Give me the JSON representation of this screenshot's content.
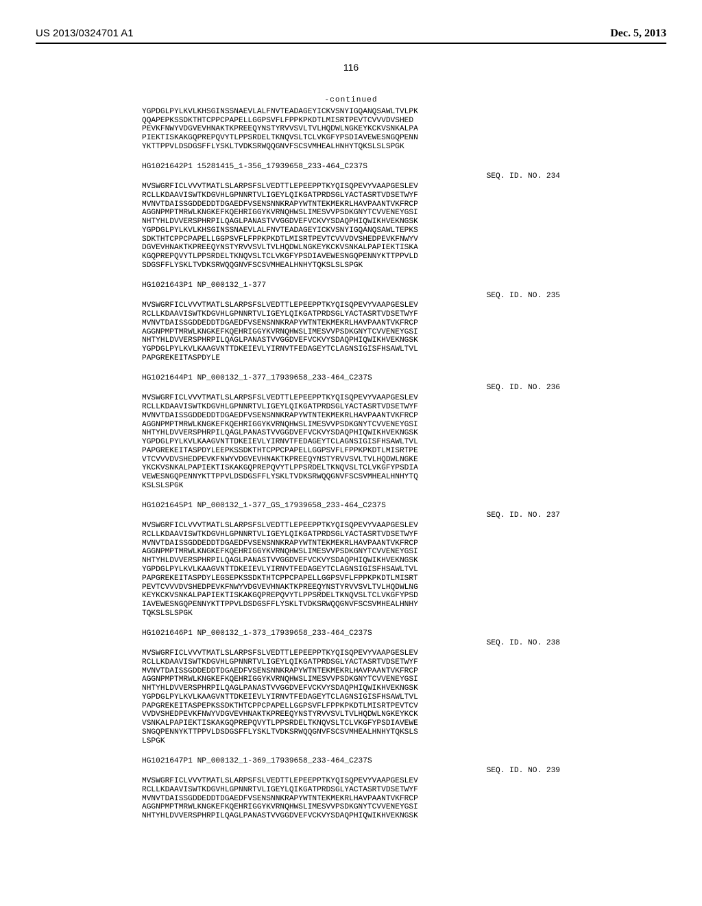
{
  "header": {
    "pub_number": "US 2013/0324701 A1",
    "pub_date": "Dec. 5, 2013"
  },
  "page_number": "116",
  "continued_label": "-continued",
  "blocks": [
    {
      "label": "",
      "seq_id": "",
      "lines": [
        "YGPDGLPYLKVLKHSGINSSNAEVLALFNVTEADAGEYICKVSNYIGQANQSAWLTVLPK",
        "QQAPEPKSSDKTHTCPPCPAPELLGGPSVFLFPPKPKDTLMISRTPEVTCVVVDVSHED",
        "PEVKFNWYVDGVEVHNAKTKPREEQYNSTYRVVSVLTVLHQDWLNGKEYKCKVSNKALPA",
        "PIEKTISKAKGQPREPQVYTLPPSRDELTKNQVSLTCLVKGFYPSDIAVEWESNGQPENN",
        "YKTTPPVLDSDGSFFLYSKLTVDKSRWQQGNVFSCSVMHEALHNHYTQKSLSLSPGK"
      ]
    },
    {
      "label": "HG1021642P1 15281415_1-356_17939658_233-464_C237S",
      "seq_id": "SEQ. ID. NO. 234",
      "lines": [
        "MVSWGRFICLVVVTMATLSLARPSFSLVEDTTLEPEEPPTKYQISQPEVYVAAPGESLEV",
        "RCLLKDAAVISWTKDGVHLGPNNRTVLIGEYLQIKGATPRDSGLYACTASRTVDSETWYF",
        "MVNVTDAISSGDDEDDTDGAEDFVSENSNNKRAPYWTNTEKMEKRLHAVPAANTVKFRCP",
        "AGGNPMPTMRWLKNGKEFKQEHRIGGYKVRNQHWSLIMESVVPSDKGNYTCVVENEYGSI",
        "NHTYHLDVVERSPHRPILQAGLPANASTVVGGDVEFVCKVYSDAQPHIQWIKHVEKNGSK",
        "YGPDGLPYLKVLKHSGINSSNAEVLALFNVTEADAGEYICKVSNYIGQANQSAWLTEPKS",
        "SDKTHTCPPCPAPELLGGPSVFLFPPKPKDTLMISRTPEVTCVVVDVSHEDPEVKFNWYV",
        "DGVEVHNAKTKPREEQYNSTYRVVSVLTVLHQDWLNGKEYKCKVSNKALPAPIEKTISKA",
        "KGQPREPQVYTLPPSRDELTKNQVSLTCLVKGFYPSDIAVEWESNGQPENNYKTTPPVLD",
        "SDGSFFLYSKLTVDKSRWQQGNVFSCSVMHEALHNHYTQKSLSLSPGK"
      ]
    },
    {
      "label": "HG1021643P1 NP_000132_1-377",
      "seq_id": "SEQ. ID. NO. 235",
      "lines": [
        "MVSWGRFICLVVVTMATLSLARPSFSLVEDTTLEPEEPPTKYQISQPEVYVAAPGESLEV",
        "RCLLKDAAVISWTKDGVHLGPNNRTVLIGEYLQIKGATPRDSGLYACTASRTVDSETWYF",
        "MVNVTDAISSGDDEDDTDGAEDFVSENSNNKRAPYWTNTEKMEKRLHAVPAANTVKFRCP",
        "AGGNPMPTMRWLKNGKEFKQEHRIGGYKVRNQHWSLIMESVVPSDKGNYTCVVENEYGSI",
        "NHTYHLDVVERSPHRPILQAGLPANASTVVGGDVEFVCKVYSDAQPHIQWIKHVEKNGSK",
        "YGPDGLPYLKVLKAAGVNTTDKEIEVLYIRNVTFEDAGEYTCLAGNSIGISFHSAWLTVL",
        "PAPGREKEITASPDYLE"
      ]
    },
    {
      "label": "HG1021644P1 NP_000132_1-377_17939658_233-464_C237S",
      "seq_id": "SEQ. ID. NO. 236",
      "lines": [
        "MVSWGRFICLVVVTMATLSLARPSFSLVEDTTLEPEEPPTKYQISQPEVYVAAPGESLEV",
        "RCLLKDAAVISWTKDGVHLGPNNRTVLIGEYLQIKGATPRDSGLYACTASRTVDSETWYF",
        "MVNVTDAISSGDDEDDTDGAEDFVSENSNNKRAPYWTNTEKMEKRLHAVPAANTVKFRCP",
        "AGGNPMPTMRWLKNGKEFKQEHRIGGYKVRNQHWSLIMESVVPSDKGNYTCVVENEYGSI",
        "NHTYHLDVVERSPHRPILQAGLPANASTVVGGDVEFVCKVYSDAQPHIQWIKHVEKNGSK",
        "YGPDGLPYLKVLKAAGVNTTDKEIEVLYIRNVTFEDAGEYTCLAGNSIGISFHSAWLTVL",
        "PAPGREKEITASPDYLEEPKSSDKTHTCPPCPAPELLGGPSVFLFPPKPKDTLMISRTPE",
        "VTCVVVDVSHEDPEVKFNWYVDGVEVHNAKTKPREEQYNSTYRVVSVLTVLHQDWLNGKE",
        "YKCKVSNKALPAPIEKTISKAKGQPREPQVYTLPPSRDELTKNQVSLTCLVKGFYPSDIA",
        "VEWESNGQPENNYKTTPPVLDSDGSFFLYSKLTVDKSRWQQGNVFSCSVMHEALHNHYTQ",
        "KSLSLSPGK"
      ]
    },
    {
      "label": "HG1021645P1 NP_000132_1-377_GS_17939658_233-464_C237S",
      "seq_id": "SEQ. ID. NO. 237",
      "lines": [
        "MVSWGRFICLVVVTMATLSLARPSFSLVEDTTLEPEEPPTKYQISQPEVYVAAPGESLEV",
        "RCLLKDAAVISWTKDGVHLGPNNRTVLIGEYLQIKGATPRDSGLYACTASRTVDSETWYF",
        "MVNVTDAISSGDDEDDTDGAEDFVSENSNNKRAPYWTNTEKMEKRLHAVPAANTVKFRCP",
        "AGGNPMPTMRWLKNGKEFKQEHRIGGYKVRNQHWSLIMESVVPSDKGNYTCVVENEYGSI",
        "NHTYHLDVVERSPHRPILQAGLPANASTVVGGDVEFVCKVYSDAQPHIQWIKHVEKNGSK",
        "YGPDGLPYLKVLKAAGVNTTDKEIEVLYIRNVTFEDAGEYTCLAGNSIGISFHSAWLTVL",
        "PAPGREKEITASPDYLEGSEPKSSDKTHTCPPCPAPELLGGPSVFLFPPKPKDTLMISRT",
        "PEVTCVVVDVSHEDPEVKFNWYVDGVEVHNAKTKPREEQYNSTYRVVSVLTVLHQDWLNG",
        "KEYKCKVSNKALPAPIEKTISKAKGQPREPQVYTLPPSRDELTKNQVSLTCLVKGFYPSD",
        "IAVEWESNGQPENNYKTTPPVLDSDGSFFLYSKLTVDKSRWQQGNVFSCSVMHEALHNHY",
        "TQKSLSLSPGK"
      ]
    },
    {
      "label": "HG1021646P1 NP_000132_1-373_17939658_233-464_C237S",
      "seq_id": "SEQ. ID. NO. 238",
      "lines": [
        "MVSWGRFICLVVVTMATLSLARPSFSLVEDTTLEPEEPPTKYQISQPEVYVAAPGESLEV",
        "RCLLKDAAVISWTKDGVHLGPNNRTVLIGEYLQIKGATPRDSGLYACTASRTVDSETWYF",
        "MVNVTDAISSGDDEDDTDGAEDFVSENSNNKRAPYWTNTEKMEKRLHAVPAANTVKFRCP",
        "AGGNPMPTMRWLKNGKEFKQEHRIGGYKVRNQHWSLIMESVVPSDKGNYTCVVENEYGSI",
        "NHTYHLDVVERSPHRPILQAGLPANASTVVGGDVEFVCKVYSDAQPHIQWIKHVEKNGSK",
        "YGPDGLPYLKVLKAAGVNTTDKEIEVLYIRNVTFEDAGEYTCLAGNSIGISFHSAWLTVL",
        "PAPGREKEITASPEPKSSDKTHTCPPCPAPELLGGPSVFLFPPKPKDTLMISRTPEVTCV",
        "VVDVSHEDPEVKFNWYVDGVEVHNAKTKPREEQYNSTYRVVSVLTVLHQDWLNGKEYKCK",
        "VSNKALPAPIEKTISKAKGQPREPQVYTLPPSRDELTKNQVSLTCLVKGFYPSDIAVEWE",
        "SNGQPENNYKTTPPVLDSDGSFFLYSKLTVDKSRWQQGNVFSCSVMHEALHNHYTQKSLS",
        "LSPGK"
      ]
    },
    {
      "label": "HG1021647P1 NP_000132_1-369_17939658_233-464_C237S",
      "seq_id": "SEQ. ID. NO. 239",
      "lines": [
        "MVSWGRFICLVVVTMATLSLARPSFSLVEDTTLEPEEPPTKYQISQPEVYVAAPGESLEV",
        "RCLLKDAAVISWTKDGVHLGPNNRTVLIGEYLQIKGATPRDSGLYACTASRTVDSETWYF",
        "MVNVTDAISSGDDEDDTDGAEDFVSENSNNKRAPYWTNTEKMEKRLHAVPAANTVKFRCP",
        "AGGNPMPTMRWLKNGKEFKQEHRIGGYKVRNQHWSLIMESVVPSDKGNYTCVVENEYGSI",
        "NHTYHLDVVERSPHRPILQAGLPANASTVVGGDVEFVCKVYSDAQPHIQWIKHVEKNGSK"
      ]
    }
  ]
}
